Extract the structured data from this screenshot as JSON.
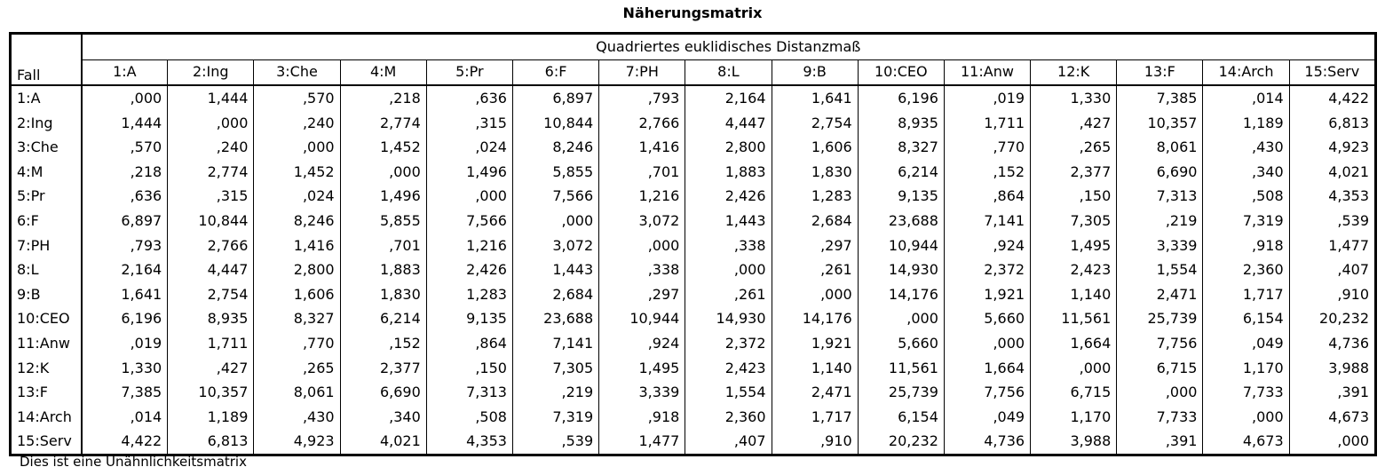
{
  "title": "Näherungsmatrix",
  "header": {
    "row_label": "Fall",
    "group_label": "Quadriertes euklidisches Distanzmaß"
  },
  "columns": [
    "1:A",
    "2:Ing",
    "3:Che",
    "4:M",
    "5:Pr",
    "6:F",
    "7:PH",
    "8:L",
    "9:B",
    "10:CEO",
    "11:Anw",
    "12:K",
    "13:F",
    "14:Arch",
    "15:Serv"
  ],
  "rows": [
    {
      "label": "1:A",
      "values": [
        ",000",
        "1,444",
        ",570",
        ",218",
        ",636",
        "6,897",
        ",793",
        "2,164",
        "1,641",
        "6,196",
        ",019",
        "1,330",
        "7,385",
        ",014",
        "4,422"
      ]
    },
    {
      "label": "2:Ing",
      "values": [
        "1,444",
        ",000",
        ",240",
        "2,774",
        ",315",
        "10,844",
        "2,766",
        "4,447",
        "2,754",
        "8,935",
        "1,711",
        ",427",
        "10,357",
        "1,189",
        "6,813"
      ]
    },
    {
      "label": "3:Che",
      "values": [
        ",570",
        ",240",
        ",000",
        "1,452",
        ",024",
        "8,246",
        "1,416",
        "2,800",
        "1,606",
        "8,327",
        ",770",
        ",265",
        "8,061",
        ",430",
        "4,923"
      ]
    },
    {
      "label": "4:M",
      "values": [
        ",218",
        "2,774",
        "1,452",
        ",000",
        "1,496",
        "5,855",
        ",701",
        "1,883",
        "1,830",
        "6,214",
        ",152",
        "2,377",
        "6,690",
        ",340",
        "4,021"
      ]
    },
    {
      "label": "5:Pr",
      "values": [
        ",636",
        ",315",
        ",024",
        "1,496",
        ",000",
        "7,566",
        "1,216",
        "2,426",
        "1,283",
        "9,135",
        ",864",
        ",150",
        "7,313",
        ",508",
        "4,353"
      ]
    },
    {
      "label": "6:F",
      "values": [
        "6,897",
        "10,844",
        "8,246",
        "5,855",
        "7,566",
        ",000",
        "3,072",
        "1,443",
        "2,684",
        "23,688",
        "7,141",
        "7,305",
        ",219",
        "7,319",
        ",539"
      ]
    },
    {
      "label": "7:PH",
      "values": [
        ",793",
        "2,766",
        "1,416",
        ",701",
        "1,216",
        "3,072",
        ",000",
        ",338",
        ",297",
        "10,944",
        ",924",
        "1,495",
        "3,339",
        ",918",
        "1,477"
      ]
    },
    {
      "label": "8:L",
      "values": [
        "2,164",
        "4,447",
        "2,800",
        "1,883",
        "2,426",
        "1,443",
        ",338",
        ",000",
        ",261",
        "14,930",
        "2,372",
        "2,423",
        "1,554",
        "2,360",
        ",407"
      ]
    },
    {
      "label": "9:B",
      "values": [
        "1,641",
        "2,754",
        "1,606",
        "1,830",
        "1,283",
        "2,684",
        ",297",
        ",261",
        ",000",
        "14,176",
        "1,921",
        "1,140",
        "2,471",
        "1,717",
        ",910"
      ]
    },
    {
      "label": "10:CEO",
      "values": [
        "6,196",
        "8,935",
        "8,327",
        "6,214",
        "9,135",
        "23,688",
        "10,944",
        "14,930",
        "14,176",
        ",000",
        "5,660",
        "11,561",
        "25,739",
        "6,154",
        "20,232"
      ]
    },
    {
      "label": "11:Anw",
      "values": [
        ",019",
        "1,711",
        ",770",
        ",152",
        ",864",
        "7,141",
        ",924",
        "2,372",
        "1,921",
        "5,660",
        ",000",
        "1,664",
        "7,756",
        ",049",
        "4,736"
      ]
    },
    {
      "label": "12:K",
      "values": [
        "1,330",
        ",427",
        ",265",
        "2,377",
        ",150",
        "7,305",
        "1,495",
        "2,423",
        "1,140",
        "11,561",
        "1,664",
        ",000",
        "6,715",
        "1,170",
        "3,988"
      ]
    },
    {
      "label": "13:F",
      "values": [
        "7,385",
        "10,357",
        "8,061",
        "6,690",
        "7,313",
        ",219",
        "3,339",
        "1,554",
        "2,471",
        "25,739",
        "7,756",
        "6,715",
        ",000",
        "7,733",
        ",391"
      ]
    },
    {
      "label": "14:Arch",
      "values": [
        ",014",
        "1,189",
        ",430",
        ",340",
        ",508",
        "7,319",
        ",918",
        "2,360",
        "1,717",
        "6,154",
        ",049",
        "1,170",
        "7,733",
        ",000",
        "4,673"
      ]
    },
    {
      "label": "15:Serv",
      "values": [
        "4,422",
        "6,813",
        "4,923",
        "4,021",
        "4,353",
        ",539",
        "1,477",
        ",407",
        ",910",
        "20,232",
        "4,736",
        "3,988",
        ",391",
        "4,673",
        ",000"
      ]
    }
  ],
  "footnote": "Dies ist eine Unähnlichkeitsmatrix"
}
